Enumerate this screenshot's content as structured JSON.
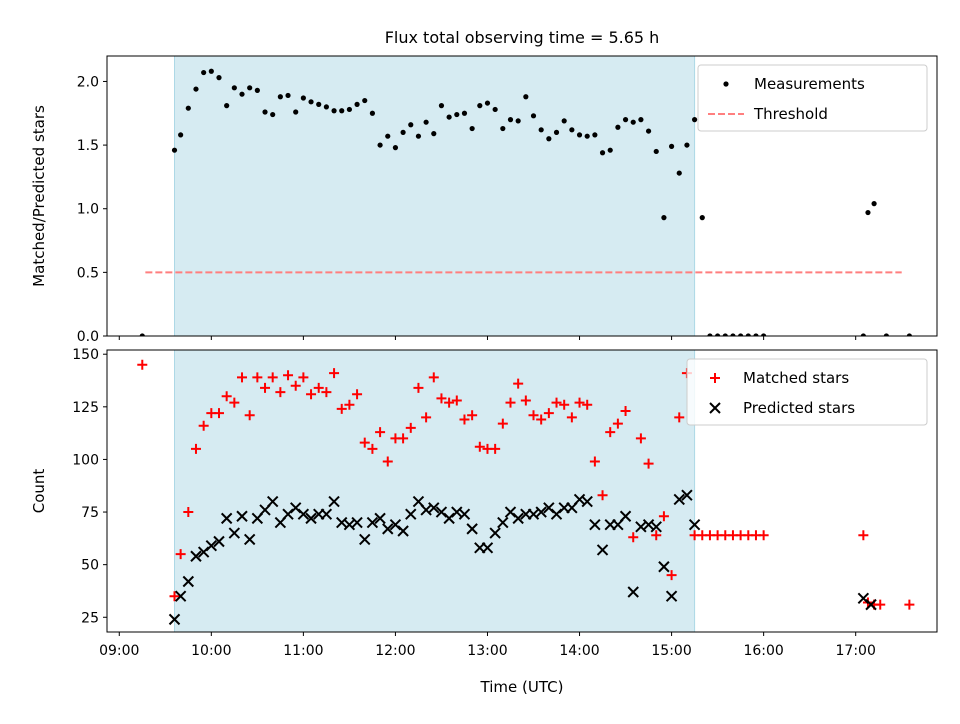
{
  "title": "Flux total observing time = 5.65 h",
  "chart_data": [
    {
      "type": "scatter",
      "ylabel": "Matched/Predicted stars",
      "ylim": [
        0,
        2.2
      ],
      "yticks": [
        "0.0",
        "0.5",
        "1.0",
        "1.5",
        "2.0"
      ],
      "xlim": [
        "08:52",
        "17:53"
      ],
      "highlight_span": {
        "start": "09:36",
        "end": "15:15",
        "color": "#add8e6"
      },
      "legend_position": "top-right",
      "series": [
        {
          "name": "Measurements",
          "marker": "dot",
          "color": "#000000",
          "points": [
            [
              "09:15",
              0
            ],
            [
              "09:36",
              1.46
            ],
            [
              "09:40",
              1.58
            ],
            [
              "09:45",
              1.79
            ],
            [
              "09:50",
              1.94
            ],
            [
              "09:55",
              2.07
            ],
            [
              "10:00",
              2.08
            ],
            [
              "10:05",
              2.03
            ],
            [
              "10:10",
              1.81
            ],
            [
              "10:15",
              1.95
            ],
            [
              "10:20",
              1.9
            ],
            [
              "10:25",
              1.95
            ],
            [
              "10:30",
              1.93
            ],
            [
              "10:35",
              1.76
            ],
            [
              "10:40",
              1.74
            ],
            [
              "10:45",
              1.88
            ],
            [
              "10:50",
              1.89
            ],
            [
              "10:55",
              1.76
            ],
            [
              "11:00",
              1.87
            ],
            [
              "11:05",
              1.84
            ],
            [
              "11:10",
              1.82
            ],
            [
              "11:15",
              1.8
            ],
            [
              "11:20",
              1.77
            ],
            [
              "11:25",
              1.77
            ],
            [
              "11:30",
              1.78
            ],
            [
              "11:35",
              1.82
            ],
            [
              "11:40",
              1.85
            ],
            [
              "11:45",
              1.75
            ],
            [
              "11:50",
              1.5
            ],
            [
              "11:55",
              1.57
            ],
            [
              "12:00",
              1.48
            ],
            [
              "12:05",
              1.6
            ],
            [
              "12:10",
              1.66
            ],
            [
              "12:15",
              1.57
            ],
            [
              "12:20",
              1.68
            ],
            [
              "12:25",
              1.59
            ],
            [
              "12:30",
              1.81
            ],
            [
              "12:35",
              1.72
            ],
            [
              "12:40",
              1.74
            ],
            [
              "12:45",
              1.75
            ],
            [
              "12:50",
              1.63
            ],
            [
              "12:55",
              1.81
            ],
            [
              "13:00",
              1.83
            ],
            [
              "13:05",
              1.78
            ],
            [
              "13:10",
              1.63
            ],
            [
              "13:15",
              1.7
            ],
            [
              "13:20",
              1.69
            ],
            [
              "13:25",
              1.88
            ],
            [
              "13:30",
              1.73
            ],
            [
              "13:35",
              1.62
            ],
            [
              "13:40",
              1.55
            ],
            [
              "13:45",
              1.6
            ],
            [
              "13:50",
              1.69
            ],
            [
              "13:55",
              1.62
            ],
            [
              "14:00",
              1.58
            ],
            [
              "14:05",
              1.57
            ],
            [
              "14:10",
              1.58
            ],
            [
              "14:15",
              1.44
            ],
            [
              "14:20",
              1.46
            ],
            [
              "14:25",
              1.64
            ],
            [
              "14:30",
              1.7
            ],
            [
              "14:35",
              1.68
            ],
            [
              "14:40",
              1.7
            ],
            [
              "14:45",
              1.61
            ],
            [
              "14:50",
              1.45
            ],
            [
              "14:55",
              0.93
            ],
            [
              "15:00",
              1.49
            ],
            [
              "15:05",
              1.28
            ],
            [
              "15:10",
              1.5
            ],
            [
              "15:15",
              1.7
            ],
            [
              "15:20",
              0.93
            ],
            [
              "15:25",
              0
            ],
            [
              "15:30",
              0
            ],
            [
              "15:35",
              0
            ],
            [
              "15:40",
              0
            ],
            [
              "15:45",
              0
            ],
            [
              "15:50",
              0
            ],
            [
              "15:55",
              0
            ],
            [
              "16:00",
              0
            ],
            [
              "17:05",
              0
            ],
            [
              "17:08",
              0.97
            ],
            [
              "17:12",
              1.04
            ],
            [
              "17:20",
              0
            ],
            [
              "17:35",
              0
            ]
          ]
        },
        {
          "name": "Threshold",
          "type": "line",
          "style": "dashed",
          "color": "#ff7f7f",
          "points": [
            [
              "09:17",
              0.5
            ],
            [
              "17:30",
              0.5
            ]
          ]
        }
      ]
    },
    {
      "type": "scatter",
      "xlabel": "Time (UTC)",
      "ylabel": "Count",
      "ylim": [
        18,
        152
      ],
      "yticks": [
        "25",
        "50",
        "75",
        "100",
        "125",
        "150"
      ],
      "xlim": [
        "08:52",
        "17:53"
      ],
      "xticks": [
        "09:00",
        "10:00",
        "11:00",
        "12:00",
        "13:00",
        "14:00",
        "15:00",
        "16:00",
        "17:00"
      ],
      "highlight_span": {
        "start": "09:36",
        "end": "15:15",
        "color": "#add8e6"
      },
      "legend_position": "top-right",
      "series": [
        {
          "name": "Matched stars",
          "marker": "plus",
          "color": "#ff0000",
          "points": [
            [
              "09:15",
              145
            ],
            [
              "09:36",
              35
            ],
            [
              "09:40",
              55
            ],
            [
              "09:45",
              75
            ],
            [
              "09:50",
              105
            ],
            [
              "09:55",
              116
            ],
            [
              "10:00",
              122
            ],
            [
              "10:05",
              122
            ],
            [
              "10:10",
              130
            ],
            [
              "10:15",
              127
            ],
            [
              "10:20",
              139
            ],
            [
              "10:25",
              121
            ],
            [
              "10:30",
              139
            ],
            [
              "10:35",
              134
            ],
            [
              "10:40",
              139
            ],
            [
              "10:45",
              132
            ],
            [
              "10:50",
              140
            ],
            [
              "10:55",
              135
            ],
            [
              "11:00",
              139
            ],
            [
              "11:05",
              131
            ],
            [
              "11:10",
              134
            ],
            [
              "11:15",
              132
            ],
            [
              "11:20",
              141
            ],
            [
              "11:25",
              124
            ],
            [
              "11:30",
              126
            ],
            [
              "11:35",
              131
            ],
            [
              "11:40",
              108
            ],
            [
              "11:45",
              105
            ],
            [
              "11:50",
              113
            ],
            [
              "11:55",
              99
            ],
            [
              "12:00",
              110
            ],
            [
              "12:05",
              110
            ],
            [
              "12:10",
              115
            ],
            [
              "12:15",
              134
            ],
            [
              "12:20",
              120
            ],
            [
              "12:25",
              139
            ],
            [
              "12:30",
              129
            ],
            [
              "12:35",
              127
            ],
            [
              "12:40",
              128
            ],
            [
              "12:45",
              119
            ],
            [
              "12:50",
              121
            ],
            [
              "12:55",
              106
            ],
            [
              "13:00",
              105
            ],
            [
              "13:05",
              105
            ],
            [
              "13:10",
              117
            ],
            [
              "13:15",
              127
            ],
            [
              "13:20",
              136
            ],
            [
              "13:25",
              128
            ],
            [
              "13:30",
              121
            ],
            [
              "13:35",
              119
            ],
            [
              "13:40",
              122
            ],
            [
              "13:45",
              127
            ],
            [
              "13:50",
              126
            ],
            [
              "13:55",
              120
            ],
            [
              "14:00",
              127
            ],
            [
              "14:05",
              126
            ],
            [
              "14:10",
              99
            ],
            [
              "14:15",
              83
            ],
            [
              "14:20",
              113
            ],
            [
              "14:25",
              117
            ],
            [
              "14:30",
              123
            ],
            [
              "14:35",
              63
            ],
            [
              "14:40",
              110
            ],
            [
              "14:45",
              98
            ],
            [
              "14:50",
              64
            ],
            [
              "14:55",
              73
            ],
            [
              "15:00",
              45
            ],
            [
              "15:05",
              120
            ],
            [
              "15:10",
              141
            ],
            [
              "15:15",
              64
            ],
            [
              "15:20",
              64
            ],
            [
              "15:25",
              64
            ],
            [
              "15:30",
              64
            ],
            [
              "15:35",
              64
            ],
            [
              "15:40",
              64
            ],
            [
              "15:45",
              64
            ],
            [
              "15:50",
              64
            ],
            [
              "15:55",
              64
            ],
            [
              "16:00",
              64
            ],
            [
              "17:05",
              64
            ],
            [
              "17:08",
              32
            ],
            [
              "17:12",
              31
            ],
            [
              "17:16",
              31
            ],
            [
              "17:35",
              31
            ]
          ]
        },
        {
          "name": "Predicted stars",
          "marker": "x",
          "color": "#000000",
          "points": [
            [
              "09:36",
              24
            ],
            [
              "09:40",
              35
            ],
            [
              "09:45",
              42
            ],
            [
              "09:50",
              54
            ],
            [
              "09:55",
              56
            ],
            [
              "10:00",
              59
            ],
            [
              "10:05",
              61
            ],
            [
              "10:10",
              72
            ],
            [
              "10:15",
              65
            ],
            [
              "10:20",
              73
            ],
            [
              "10:25",
              62
            ],
            [
              "10:30",
              72
            ],
            [
              "10:35",
              76
            ],
            [
              "10:40",
              80
            ],
            [
              "10:45",
              70
            ],
            [
              "10:50",
              74
            ],
            [
              "10:55",
              77
            ],
            [
              "11:00",
              74
            ],
            [
              "11:05",
              72
            ],
            [
              "11:10",
              74
            ],
            [
              "11:15",
              74
            ],
            [
              "11:20",
              80
            ],
            [
              "11:25",
              70
            ],
            [
              "11:30",
              69
            ],
            [
              "11:35",
              70
            ],
            [
              "11:40",
              62
            ],
            [
              "11:45",
              70
            ],
            [
              "11:50",
              72
            ],
            [
              "11:55",
              67
            ],
            [
              "12:00",
              69
            ],
            [
              "12:05",
              66
            ],
            [
              "12:10",
              74
            ],
            [
              "12:15",
              80
            ],
            [
              "12:20",
              76
            ],
            [
              "12:25",
              77
            ],
            [
              "12:30",
              75
            ],
            [
              "12:35",
              72
            ],
            [
              "12:40",
              75
            ],
            [
              "12:45",
              74
            ],
            [
              "12:50",
              67
            ],
            [
              "12:55",
              58
            ],
            [
              "13:00",
              58
            ],
            [
              "13:05",
              65
            ],
            [
              "13:10",
              70
            ],
            [
              "13:15",
              75
            ],
            [
              "13:20",
              72
            ],
            [
              "13:25",
              74
            ],
            [
              "13:30",
              74
            ],
            [
              "13:35",
              75
            ],
            [
              "13:40",
              77
            ],
            [
              "13:45",
              74
            ],
            [
              "13:50",
              77
            ],
            [
              "13:55",
              77
            ],
            [
              "14:00",
              81
            ],
            [
              "14:05",
              80
            ],
            [
              "14:10",
              69
            ],
            [
              "14:15",
              57
            ],
            [
              "14:20",
              69
            ],
            [
              "14:25",
              69
            ],
            [
              "14:30",
              73
            ],
            [
              "14:35",
              37
            ],
            [
              "14:40",
              68
            ],
            [
              "14:45",
              69
            ],
            [
              "14:50",
              68
            ],
            [
              "14:55",
              49
            ],
            [
              "15:00",
              35
            ],
            [
              "15:05",
              81
            ],
            [
              "15:10",
              83
            ],
            [
              "15:15",
              69
            ],
            [
              "17:05",
              34
            ],
            [
              "17:10",
              31
            ]
          ]
        }
      ]
    }
  ]
}
